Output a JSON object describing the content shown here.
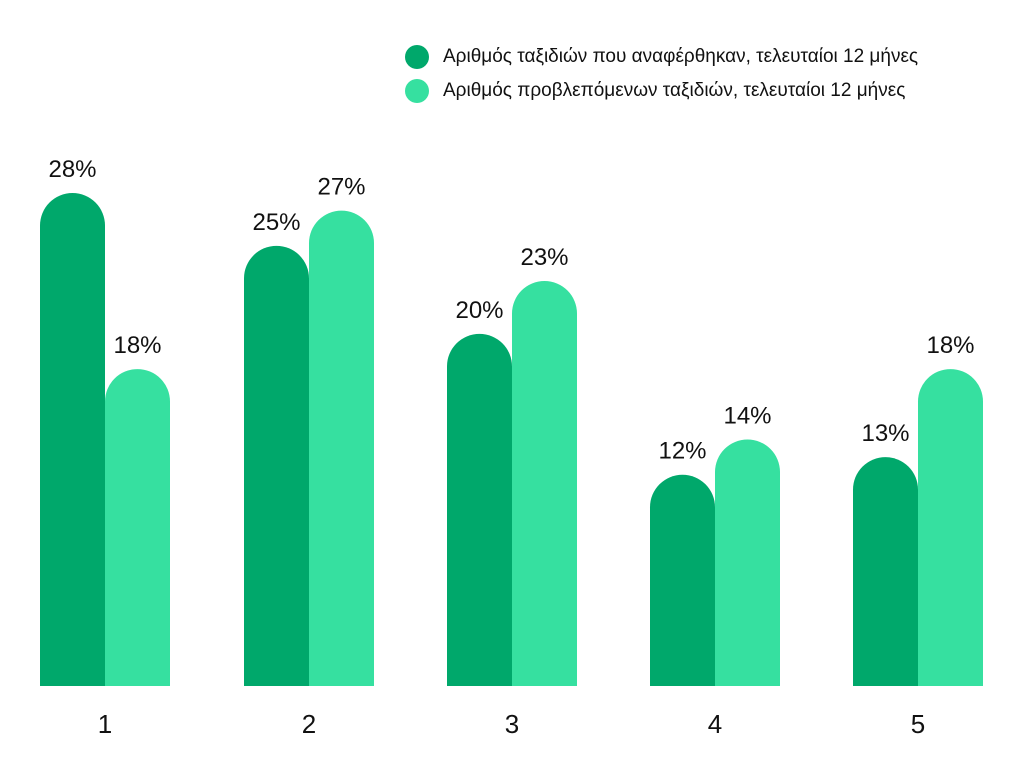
{
  "chart_data": {
    "type": "bar",
    "categories": [
      "1",
      "2",
      "3",
      "4",
      "5"
    ],
    "series": [
      {
        "name": "Αριθμός ταξιδιών που αναφέρθηκαν, τελευταίοι 12 μήνες",
        "values": [
          28,
          25,
          20,
          12,
          13
        ],
        "color": "#00a86b"
      },
      {
        "name": "Αριθμός προβλεπόμενων ταξιδιών, τελευταίοι 12 μήνες",
        "values": [
          18,
          27,
          23,
          14,
          18
        ],
        "color": "#36e0a0"
      }
    ],
    "value_suffix": "%",
    "ylim": [
      0,
      28
    ],
    "grid": false,
    "legend_position": "top-right",
    "title": "",
    "xlabel": "",
    "ylabel": ""
  }
}
